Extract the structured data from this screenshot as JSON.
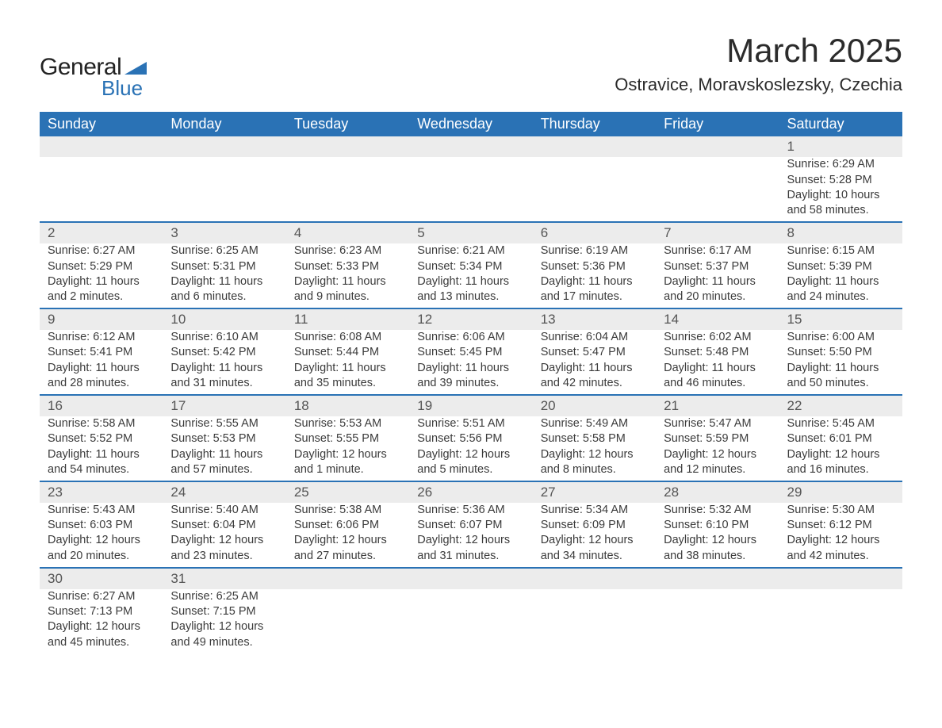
{
  "brand": {
    "word1": "General",
    "word2": "Blue",
    "accent": "#2a72b5",
    "text_color": "#222222"
  },
  "title": "March 2025",
  "location": "Ostravice, Moravskoslezsky, Czechia",
  "colors": {
    "header_bg": "#2a72b5",
    "header_text": "#ffffff",
    "daynum_bg": "#ececec",
    "row_divider": "#2a72b5",
    "body_text": "#3b3b3b",
    "page_bg": "#ffffff"
  },
  "fonts": {
    "title_size_pt": 32,
    "location_size_pt": 17,
    "header_size_pt": 14,
    "cell_size_pt": 11
  },
  "day_headers": [
    "Sunday",
    "Monday",
    "Tuesday",
    "Wednesday",
    "Thursday",
    "Friday",
    "Saturday"
  ],
  "weeks": [
    {
      "nums": [
        "",
        "",
        "",
        "",
        "",
        "",
        "1"
      ],
      "details": [
        "",
        "",
        "",
        "",
        "",
        "",
        "Sunrise: 6:29 AM\nSunset: 5:28 PM\nDaylight: 10 hours and 58 minutes."
      ]
    },
    {
      "nums": [
        "2",
        "3",
        "4",
        "5",
        "6",
        "7",
        "8"
      ],
      "details": [
        "Sunrise: 6:27 AM\nSunset: 5:29 PM\nDaylight: 11 hours and 2 minutes.",
        "Sunrise: 6:25 AM\nSunset: 5:31 PM\nDaylight: 11 hours and 6 minutes.",
        "Sunrise: 6:23 AM\nSunset: 5:33 PM\nDaylight: 11 hours and 9 minutes.",
        "Sunrise: 6:21 AM\nSunset: 5:34 PM\nDaylight: 11 hours and 13 minutes.",
        "Sunrise: 6:19 AM\nSunset: 5:36 PM\nDaylight: 11 hours and 17 minutes.",
        "Sunrise: 6:17 AM\nSunset: 5:37 PM\nDaylight: 11 hours and 20 minutes.",
        "Sunrise: 6:15 AM\nSunset: 5:39 PM\nDaylight: 11 hours and 24 minutes."
      ]
    },
    {
      "nums": [
        "9",
        "10",
        "11",
        "12",
        "13",
        "14",
        "15"
      ],
      "details": [
        "Sunrise: 6:12 AM\nSunset: 5:41 PM\nDaylight: 11 hours and 28 minutes.",
        "Sunrise: 6:10 AM\nSunset: 5:42 PM\nDaylight: 11 hours and 31 minutes.",
        "Sunrise: 6:08 AM\nSunset: 5:44 PM\nDaylight: 11 hours and 35 minutes.",
        "Sunrise: 6:06 AM\nSunset: 5:45 PM\nDaylight: 11 hours and 39 minutes.",
        "Sunrise: 6:04 AM\nSunset: 5:47 PM\nDaylight: 11 hours and 42 minutes.",
        "Sunrise: 6:02 AM\nSunset: 5:48 PM\nDaylight: 11 hours and 46 minutes.",
        "Sunrise: 6:00 AM\nSunset: 5:50 PM\nDaylight: 11 hours and 50 minutes."
      ]
    },
    {
      "nums": [
        "16",
        "17",
        "18",
        "19",
        "20",
        "21",
        "22"
      ],
      "details": [
        "Sunrise: 5:58 AM\nSunset: 5:52 PM\nDaylight: 11 hours and 54 minutes.",
        "Sunrise: 5:55 AM\nSunset: 5:53 PM\nDaylight: 11 hours and 57 minutes.",
        "Sunrise: 5:53 AM\nSunset: 5:55 PM\nDaylight: 12 hours and 1 minute.",
        "Sunrise: 5:51 AM\nSunset: 5:56 PM\nDaylight: 12 hours and 5 minutes.",
        "Sunrise: 5:49 AM\nSunset: 5:58 PM\nDaylight: 12 hours and 8 minutes.",
        "Sunrise: 5:47 AM\nSunset: 5:59 PM\nDaylight: 12 hours and 12 minutes.",
        "Sunrise: 5:45 AM\nSunset: 6:01 PM\nDaylight: 12 hours and 16 minutes."
      ]
    },
    {
      "nums": [
        "23",
        "24",
        "25",
        "26",
        "27",
        "28",
        "29"
      ],
      "details": [
        "Sunrise: 5:43 AM\nSunset: 6:03 PM\nDaylight: 12 hours and 20 minutes.",
        "Sunrise: 5:40 AM\nSunset: 6:04 PM\nDaylight: 12 hours and 23 minutes.",
        "Sunrise: 5:38 AM\nSunset: 6:06 PM\nDaylight: 12 hours and 27 minutes.",
        "Sunrise: 5:36 AM\nSunset: 6:07 PM\nDaylight: 12 hours and 31 minutes.",
        "Sunrise: 5:34 AM\nSunset: 6:09 PM\nDaylight: 12 hours and 34 minutes.",
        "Sunrise: 5:32 AM\nSunset: 6:10 PM\nDaylight: 12 hours and 38 minutes.",
        "Sunrise: 5:30 AM\nSunset: 6:12 PM\nDaylight: 12 hours and 42 minutes."
      ]
    },
    {
      "nums": [
        "30",
        "31",
        "",
        "",
        "",
        "",
        ""
      ],
      "details": [
        "Sunrise: 6:27 AM\nSunset: 7:13 PM\nDaylight: 12 hours and 45 minutes.",
        "Sunrise: 6:25 AM\nSunset: 7:15 PM\nDaylight: 12 hours and 49 minutes.",
        "",
        "",
        "",
        "",
        ""
      ]
    }
  ]
}
